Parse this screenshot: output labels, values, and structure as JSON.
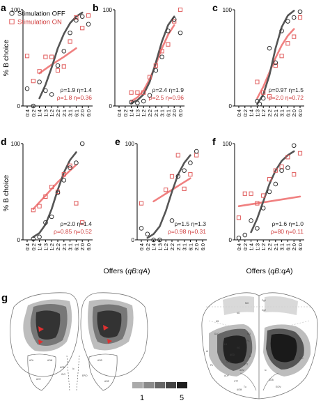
{
  "colors": {
    "off": "#555555",
    "on": "#e05a5a",
    "on_fit": "#f08080",
    "axis": "#000000",
    "fill_dark": "#2a2a2a",
    "fill_mid": "#777777",
    "fill_light": "#bdbdbd",
    "outline": "#777777"
  },
  "legend": {
    "off_label": "Stimulation OFF",
    "on_label": "Stimulation ON"
  },
  "common": {
    "ylabel": "% B choice",
    "xlabel_prefix": "Offers (",
    "xlabel_italic": "qB:qA",
    "xlabel_suffix": ")",
    "offer_ticks": [
      "0:4",
      "0:2",
      "1:4",
      "1:3",
      "1:2",
      "2:2",
      "2:1",
      "3:1",
      "6:1",
      "2:0",
      "6:0"
    ],
    "ytick_top": "100",
    "ytick_bottom": "0"
  },
  "chart_data": [
    {
      "panel": "a",
      "type": "scatter",
      "ylim": [
        0,
        100
      ],
      "off_points": [
        [
          0,
          18
        ],
        [
          1,
          0
        ],
        [
          2,
          25
        ],
        [
          3,
          16
        ],
        [
          4,
          12
        ],
        [
          5,
          42
        ],
        [
          6,
          57
        ],
        [
          7,
          76
        ],
        [
          8,
          89
        ],
        [
          9,
          93
        ],
        [
          10,
          85
        ]
      ],
      "on_points": [
        [
          0,
          52
        ],
        [
          1,
          26
        ],
        [
          2,
          36
        ],
        [
          3,
          51
        ],
        [
          4,
          51
        ],
        [
          5,
          37
        ],
        [
          6,
          41
        ],
        [
          7,
          67
        ],
        [
          8,
          92
        ],
        [
          9,
          81
        ],
        [
          10,
          94
        ]
      ],
      "off_fit": [
        [
          2,
          8
        ],
        [
          3,
          22
        ],
        [
          4,
          40
        ],
        [
          5,
          60
        ],
        [
          6,
          75
        ],
        [
          7,
          86
        ],
        [
          8,
          93
        ],
        [
          9,
          97
        ]
      ],
      "on_fit": [
        [
          2,
          34
        ],
        [
          4,
          43
        ],
        [
          6,
          51
        ],
        [
          8,
          60
        ]
      ],
      "off_params": "ρ=1.9  η=1.4",
      "on_params": "ρ=1.8  η=0.36"
    },
    {
      "panel": "b",
      "type": "scatter",
      "ylim": [
        0,
        100
      ],
      "off_points": [
        [
          2,
          4
        ],
        [
          3,
          3
        ],
        [
          4,
          5
        ],
        [
          5,
          11
        ],
        [
          6,
          37
        ],
        [
          7,
          51
        ],
        [
          8,
          78
        ],
        [
          9,
          90
        ],
        [
          10,
          76
        ]
      ],
      "on_points": [
        [
          2,
          14
        ],
        [
          3,
          14
        ],
        [
          4,
          14
        ],
        [
          5,
          30
        ],
        [
          6,
          42
        ],
        [
          7,
          57
        ],
        [
          8,
          64
        ],
        [
          9,
          88
        ],
        [
          10,
          100
        ]
      ],
      "off_fit": [
        [
          2,
          3
        ],
        [
          3,
          6
        ],
        [
          4,
          12
        ],
        [
          5,
          25
        ],
        [
          6,
          45
        ],
        [
          7,
          67
        ],
        [
          8,
          84
        ],
        [
          9,
          93
        ]
      ],
      "on_fit": [
        [
          2,
          5
        ],
        [
          3,
          9
        ],
        [
          4,
          16
        ],
        [
          5,
          28
        ],
        [
          6,
          43
        ],
        [
          7,
          60
        ],
        [
          8,
          74
        ],
        [
          9,
          84
        ]
      ],
      "off_params": "ρ=2.4  η=1.9",
      "on_params": "ρ=2.5  η=0.96"
    },
    {
      "panel": "c",
      "type": "scatter",
      "ylim": [
        0,
        100
      ],
      "off_points": [
        [
          3,
          5
        ],
        [
          3.4,
          2
        ],
        [
          4,
          8
        ],
        [
          5,
          60
        ],
        [
          6,
          45
        ],
        [
          7,
          78
        ],
        [
          8,
          88
        ],
        [
          9,
          92
        ],
        [
          10,
          98
        ]
      ],
      "on_points": [
        [
          3,
          25
        ],
        [
          4,
          14
        ],
        [
          5,
          10
        ],
        [
          6,
          42
        ],
        [
          7,
          52
        ],
        [
          8,
          65
        ],
        [
          9,
          72
        ],
        [
          10,
          92
        ]
      ],
      "off_fit": [
        [
          3,
          2
        ],
        [
          4,
          12
        ],
        [
          5,
          32
        ],
        [
          6,
          60
        ],
        [
          7,
          82
        ],
        [
          8,
          94
        ],
        [
          9,
          99
        ]
      ],
      "on_fit": [
        [
          3,
          8
        ],
        [
          4,
          20
        ],
        [
          5,
          35
        ],
        [
          6,
          50
        ],
        [
          7,
          63
        ],
        [
          8,
          73
        ],
        [
          9,
          80
        ]
      ],
      "off_params": "ρ=0.97  η=1.5",
      "on_params": "ρ=2.0  η=0.72"
    },
    {
      "panel": "d",
      "type": "scatter",
      "ylim": [
        0,
        100
      ],
      "off_points": [
        [
          1,
          1
        ],
        [
          2,
          3
        ],
        [
          3,
          18
        ],
        [
          4,
          24
        ],
        [
          5,
          49
        ],
        [
          6,
          62
        ],
        [
          7,
          75
        ],
        [
          8,
          80
        ],
        [
          9,
          100
        ]
      ],
      "on_points": [
        [
          1,
          31
        ],
        [
          2,
          35
        ],
        [
          3,
          45
        ],
        [
          4,
          55
        ],
        [
          5,
          50
        ],
        [
          6,
          68
        ],
        [
          7,
          77
        ],
        [
          8,
          38
        ],
        [
          9,
          18
        ]
      ],
      "off_fit": [
        [
          1,
          3
        ],
        [
          2,
          7
        ],
        [
          3,
          16
        ],
        [
          4,
          32
        ],
        [
          5,
          52
        ],
        [
          6,
          70
        ],
        [
          7,
          83
        ],
        [
          8,
          91
        ]
      ],
      "on_fit": [
        [
          1,
          32
        ],
        [
          3,
          46
        ],
        [
          5,
          60
        ],
        [
          7,
          72
        ],
        [
          8,
          78
        ]
      ],
      "off_params": "ρ=2.0  η=1.4",
      "on_params": "ρ=0.85  η=0.52"
    },
    {
      "panel": "e",
      "type": "scatter",
      "ylim": [
        0,
        100
      ],
      "off_points": [
        [
          0,
          12
        ],
        [
          1,
          6
        ],
        [
          2,
          0
        ],
        [
          3,
          0
        ],
        [
          5,
          20
        ],
        [
          6,
          66
        ],
        [
          7,
          72
        ],
        [
          8,
          80
        ],
        [
          9,
          92
        ]
      ],
      "on_points": [
        [
          0,
          38
        ],
        [
          4,
          52
        ],
        [
          5,
          66
        ],
        [
          6,
          88
        ],
        [
          7,
          53
        ],
        [
          8,
          68
        ],
        [
          9,
          88
        ]
      ],
      "off_fit": [
        [
          1,
          2
        ],
        [
          2,
          6
        ],
        [
          3,
          14
        ],
        [
          4,
          30
        ],
        [
          5,
          50
        ],
        [
          6,
          68
        ],
        [
          7,
          80
        ],
        [
          8,
          88
        ]
      ],
      "on_fit": [
        [
          2,
          40
        ],
        [
          4,
          48
        ],
        [
          6,
          56
        ],
        [
          8,
          64
        ]
      ],
      "off_params": "ρ=1.5  η=1.3",
      "on_params": "ρ=0.98  η=0.31"
    },
    {
      "panel": "f",
      "type": "scatter",
      "ylim": [
        0,
        100
      ],
      "off_points": [
        [
          0,
          2
        ],
        [
          1,
          5
        ],
        [
          2,
          20
        ],
        [
          3,
          12
        ],
        [
          4,
          33
        ],
        [
          5,
          50
        ],
        [
          6,
          58
        ],
        [
          7,
          72
        ],
        [
          8,
          75
        ],
        [
          9,
          98
        ]
      ],
      "on_points": [
        [
          0,
          23
        ],
        [
          1,
          48
        ],
        [
          2,
          48
        ],
        [
          3,
          38
        ],
        [
          4,
          46
        ],
        [
          5,
          63
        ],
        [
          6,
          72
        ],
        [
          7,
          76
        ],
        [
          8,
          86
        ],
        [
          9,
          68
        ],
        [
          10,
          90
        ]
      ],
      "off_fit": [
        [
          2,
          8
        ],
        [
          3,
          22
        ],
        [
          4,
          40
        ],
        [
          5,
          58
        ],
        [
          6,
          72
        ],
        [
          7,
          82
        ],
        [
          8,
          88
        ],
        [
          9,
          92
        ]
      ],
      "on_fit": [
        [
          0,
          35
        ],
        [
          4,
          39
        ],
        [
          8,
          43
        ],
        [
          10,
          45
        ]
      ],
      "off_params": "ρ=1.6  η=1.0",
      "on_params": "ρ=80  η=0.11"
    }
  ],
  "panel_g": {
    "label": "g",
    "colorbar_min": "1",
    "colorbar_max": "5",
    "colorbar_levels": [
      1,
      2,
      3,
      4,
      5
    ],
    "colorbar_colors": [
      "#aaaaaa",
      "#8a8a8a",
      "#666666",
      "#444444",
      "#1e1e1e"
    ],
    "left_region_labels": [
      "AOL",
      "AOM",
      "AOV",
      "AOB",
      "GrO",
      "lo",
      "AOD",
      "EPlO",
      "AOE"
    ],
    "right_region_labels": [
      "MO",
      "Cg1",
      "Cg2",
      "M2",
      "M1",
      "AI",
      "PrL",
      "MO",
      "VO",
      "LO",
      "DLO",
      "Tu",
      "IL",
      "AOV",
      "AOP",
      "DTT",
      "VTT",
      "AOB",
      "lo",
      "Pir",
      "AOM",
      "AOL",
      "AOD",
      "E/OV",
      "S1J"
    ]
  }
}
